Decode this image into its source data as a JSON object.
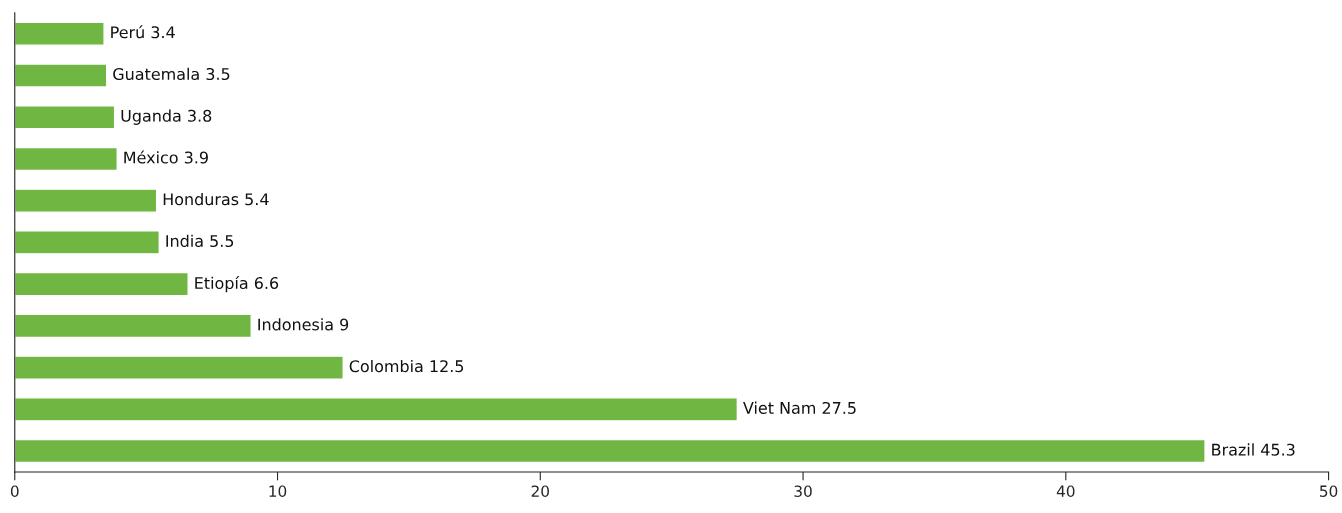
{
  "chart_data": {
    "type": "bar",
    "orientation": "horizontal",
    "categories": [
      null,
      null,
      null,
      null,
      null,
      null,
      null,
      null,
      null,
      null,
      null
    ],
    "values": [
      3.4,
      3.5,
      3.8,
      3.9,
      5.4,
      5.5,
      6.6,
      9,
      12.5,
      27.5,
      45.3
    ],
    "value_labels": [
      "Perú 3.4",
      "Guatemala 3.5",
      "Uganda 3.8",
      "México 3.9",
      "Honduras 5.4",
      "India 5.5",
      "Etiopía 6.6",
      "Indonesia 9",
      "Colombia 12.5",
      "Viet Nam 27.5",
      "Brazil 45.3"
    ],
    "color": "#70b643",
    "xlim": [
      0,
      50
    ],
    "xticks": [
      0,
      10,
      20,
      30,
      40,
      50
    ],
    "tick_labels": "x",
    "grid": false,
    "legend": false
  }
}
